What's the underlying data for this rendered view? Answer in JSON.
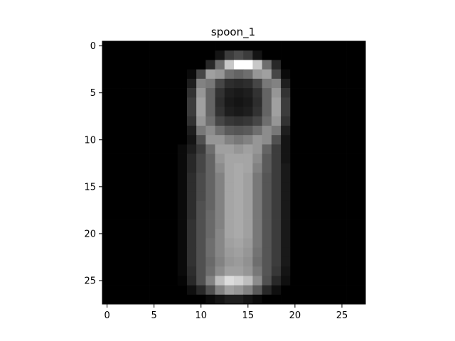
{
  "chart_data": {
    "type": "heatmap",
    "title": "spoon_1",
    "xlabel": "",
    "ylabel": "",
    "colormap": "gray",
    "value_range": [
      0,
      255
    ],
    "grid": false,
    "rows": 28,
    "cols": 28,
    "xlim": [
      -0.5,
      27.5
    ],
    "ylim": [
      27.5,
      -0.5
    ],
    "x_ticks": [
      0,
      5,
      10,
      15,
      20,
      25
    ],
    "y_ticks": [
      0,
      5,
      10,
      15,
      20,
      25
    ],
    "x_tick_labels": [
      "0",
      "5",
      "10",
      "15",
      "20",
      "25"
    ],
    "y_tick_labels": [
      "0",
      "5",
      "10",
      "15",
      "20",
      "25"
    ],
    "pixels": [
      [
        0,
        0,
        0,
        0,
        0,
        0,
        0,
        0,
        0,
        0,
        0,
        0,
        0,
        0,
        0,
        0,
        0,
        0,
        0,
        0,
        0,
        0,
        0,
        0,
        0,
        0,
        0,
        0
      ],
      [
        0,
        0,
        0,
        0,
        0,
        0,
        0,
        0,
        0,
        0,
        0,
        0,
        20,
        60,
        75,
        60,
        20,
        0,
        0,
        0,
        0,
        0,
        0,
        0,
        0,
        0,
        0,
        0
      ],
      [
        0,
        0,
        0,
        0,
        0,
        0,
        0,
        0,
        0,
        0,
        0,
        40,
        110,
        200,
        255,
        255,
        200,
        110,
        40,
        0,
        0,
        0,
        0,
        0,
        0,
        0,
        0,
        0
      ],
      [
        0,
        0,
        0,
        0,
        0,
        0,
        0,
        0,
        0,
        10,
        70,
        160,
        150,
        110,
        100,
        110,
        150,
        160,
        70,
        10,
        0,
        0,
        0,
        0,
        0,
        0,
        0,
        0
      ],
      [
        0,
        0,
        0,
        0,
        0,
        0,
        0,
        0,
        0,
        30,
        130,
        120,
        70,
        45,
        40,
        45,
        70,
        120,
        130,
        30,
        0,
        0,
        0,
        0,
        0,
        0,
        0,
        0
      ],
      [
        0,
        0,
        0,
        0,
        0,
        0,
        0,
        0,
        0,
        50,
        150,
        100,
        50,
        30,
        25,
        30,
        50,
        100,
        150,
        50,
        0,
        0,
        0,
        0,
        0,
        0,
        0,
        0
      ],
      [
        0,
        0,
        0,
        0,
        0,
        0,
        0,
        0,
        0,
        60,
        160,
        100,
        45,
        25,
        20,
        25,
        45,
        100,
        160,
        60,
        0,
        0,
        0,
        0,
        0,
        0,
        0,
        0
      ],
      [
        0,
        0,
        0,
        0,
        0,
        0,
        0,
        0,
        0,
        60,
        160,
        100,
        50,
        30,
        25,
        30,
        50,
        100,
        160,
        60,
        0,
        0,
        0,
        0,
        0,
        0,
        0,
        0
      ],
      [
        0,
        0,
        0,
        0,
        0,
        0,
        0,
        0,
        0,
        50,
        150,
        110,
        70,
        55,
        50,
        55,
        70,
        110,
        150,
        50,
        0,
        0,
        0,
        0,
        0,
        0,
        0,
        0
      ],
      [
        0,
        0,
        0,
        0,
        0,
        0,
        0,
        0,
        0,
        30,
        120,
        140,
        110,
        90,
        85,
        90,
        110,
        140,
        120,
        30,
        0,
        0,
        0,
        0,
        0,
        0,
        0,
        0
      ],
      [
        0,
        0,
        0,
        0,
        0,
        0,
        0,
        0,
        0,
        20,
        80,
        150,
        150,
        130,
        120,
        130,
        150,
        140,
        80,
        20,
        0,
        0,
        0,
        0,
        0,
        0,
        0,
        0
      ],
      [
        0,
        0,
        0,
        0,
        0,
        0,
        0,
        0,
        10,
        30,
        60,
        110,
        160,
        160,
        150,
        160,
        150,
        100,
        60,
        20,
        0,
        0,
        0,
        0,
        0,
        0,
        0,
        0
      ],
      [
        0,
        0,
        0,
        0,
        0,
        0,
        0,
        0,
        10,
        40,
        70,
        100,
        150,
        165,
        165,
        165,
        140,
        90,
        60,
        20,
        0,
        0,
        0,
        0,
        0,
        0,
        0,
        0
      ],
      [
        0,
        0,
        0,
        0,
        0,
        0,
        0,
        0,
        10,
        40,
        70,
        100,
        140,
        165,
        170,
        165,
        130,
        90,
        60,
        25,
        0,
        0,
        0,
        0,
        0,
        0,
        0,
        0
      ],
      [
        0,
        0,
        0,
        0,
        0,
        0,
        0,
        0,
        10,
        45,
        75,
        100,
        130,
        165,
        170,
        160,
        120,
        85,
        60,
        25,
        0,
        0,
        0,
        0,
        0,
        0,
        0,
        0
      ],
      [
        0,
        0,
        0,
        0,
        0,
        0,
        0,
        0,
        10,
        45,
        75,
        100,
        130,
        165,
        170,
        160,
        120,
        85,
        60,
        25,
        0,
        0,
        0,
        0,
        0,
        0,
        0,
        0
      ],
      [
        0,
        0,
        0,
        0,
        0,
        0,
        0,
        0,
        10,
        45,
        75,
        100,
        130,
        165,
        170,
        160,
        120,
        85,
        60,
        25,
        0,
        0,
        0,
        0,
        0,
        0,
        0,
        0
      ],
      [
        0,
        0,
        0,
        0,
        0,
        0,
        0,
        0,
        10,
        45,
        80,
        100,
        130,
        165,
        170,
        160,
        120,
        85,
        60,
        25,
        0,
        0,
        0,
        0,
        0,
        0,
        0,
        0
      ],
      [
        0,
        0,
        0,
        0,
        0,
        0,
        0,
        0,
        10,
        45,
        80,
        105,
        130,
        165,
        170,
        160,
        120,
        85,
        60,
        25,
        0,
        0,
        0,
        0,
        0,
        0,
        0,
        0
      ],
      [
        0,
        0,
        0,
        0,
        0,
        0,
        0,
        0,
        10,
        50,
        80,
        105,
        130,
        165,
        170,
        160,
        120,
        85,
        60,
        25,
        0,
        0,
        0,
        0,
        0,
        0,
        0,
        0
      ],
      [
        0,
        0,
        0,
        0,
        0,
        0,
        0,
        0,
        10,
        50,
        80,
        105,
        135,
        165,
        170,
        160,
        120,
        85,
        60,
        25,
        0,
        0,
        0,
        0,
        0,
        0,
        0,
        0
      ],
      [
        0,
        0,
        0,
        0,
        0,
        0,
        0,
        0,
        10,
        50,
        80,
        110,
        135,
        160,
        165,
        155,
        120,
        85,
        60,
        25,
        0,
        0,
        0,
        0,
        0,
        0,
        0,
        0
      ],
      [
        0,
        0,
        0,
        0,
        0,
        0,
        0,
        0,
        10,
        50,
        80,
        110,
        135,
        155,
        160,
        150,
        115,
        85,
        60,
        25,
        0,
        0,
        0,
        0,
        0,
        0,
        0,
        0
      ],
      [
        0,
        0,
        0,
        0,
        0,
        0,
        0,
        0,
        10,
        50,
        80,
        105,
        130,
        150,
        155,
        145,
        110,
        85,
        60,
        25,
        0,
        0,
        0,
        0,
        0,
        0,
        0,
        0
      ],
      [
        0,
        0,
        0,
        0,
        0,
        0,
        0,
        0,
        10,
        45,
        80,
        110,
        140,
        160,
        160,
        150,
        120,
        85,
        55,
        20,
        0,
        0,
        0,
        0,
        0,
        0,
        0,
        0
      ],
      [
        0,
        0,
        0,
        0,
        0,
        0,
        0,
        0,
        5,
        40,
        80,
        130,
        190,
        220,
        210,
        190,
        140,
        80,
        40,
        15,
        0,
        0,
        0,
        0,
        0,
        0,
        0,
        0
      ],
      [
        0,
        0,
        0,
        0,
        0,
        0,
        0,
        0,
        0,
        15,
        40,
        80,
        130,
        160,
        150,
        130,
        90,
        40,
        15,
        0,
        0,
        0,
        0,
        0,
        0,
        0,
        0,
        0
      ],
      [
        0,
        0,
        0,
        0,
        0,
        0,
        0,
        0,
        0,
        0,
        0,
        10,
        20,
        30,
        30,
        20,
        10,
        0,
        0,
        0,
        0,
        0,
        0,
        0,
        0,
        0,
        0,
        0
      ]
    ]
  }
}
